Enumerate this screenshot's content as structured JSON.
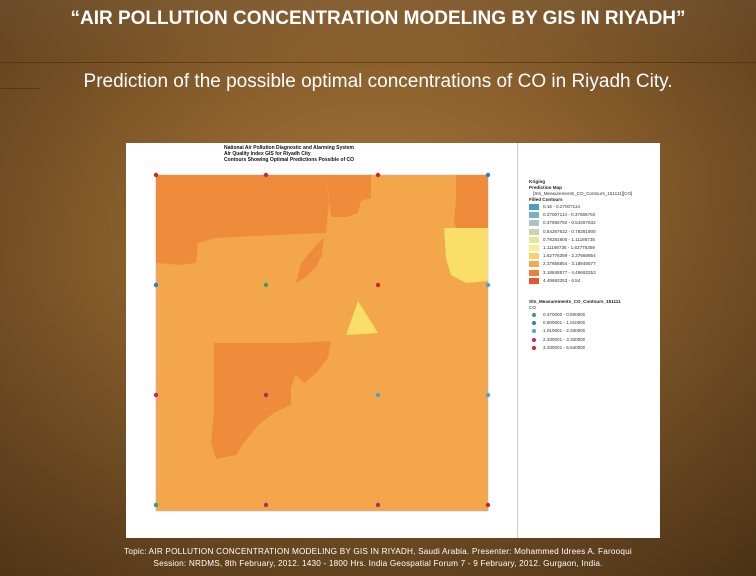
{
  "slide": {
    "title": "“AIR POLLUTION CONCENTRATION MODELING BY GIS IN RIYADH”",
    "subtitle": "Prediction of the possible optimal concentrations of CO in Riyadh City.",
    "footer_line1": "Topic: AIR POLLUTION CONCENTRATION MODELING BY GIS IN RIYADH, Saudi Arabia. Presenter: Mohammed Idrees A. Farooqui",
    "footer_line2": "Session: NRDMS, 8th February, 2012. 1430 - 1800 Hrs.  India Geospatial Forum  7 - 9 February, 2012. Gurgaon, India."
  },
  "map": {
    "header_line1": "National Air Pollution Diagnostic and Alarming System",
    "header_line2": "Air Quality Index GIS for Riyadh City",
    "header_line3": "Contours Showing Optimal Predictions Possible of CO",
    "colors": {
      "base": "#f4a64a",
      "high": "#ee8a3a",
      "low": "#f9e06a",
      "frame": "#9a9a9a"
    }
  },
  "legend": {
    "kriging_title": "Kriging",
    "prediction_label": "Prediction Map",
    "layer_name": "[Stn_Measurements_CO_Contours_151111][CO]",
    "filled_title": "Filled Contours",
    "filled_items": [
      {
        "label": "0.16 - 0.27007114",
        "color": "#4a9ec2"
      },
      {
        "label": "0.27007114 - 0.37666792",
        "color": "#7ab0c6"
      },
      {
        "label": "0.37666792 - 0.54267632",
        "color": "#a8c4c4"
      },
      {
        "label": "0.54267632 - 0.78281900",
        "color": "#c6d6a6"
      },
      {
        "label": "0.78281900 - 1.11166735",
        "color": "#e4e69a"
      },
      {
        "label": "1.11166735 - 1.62776359",
        "color": "#f7ef8e"
      },
      {
        "label": "1.62776359 - 2.37668854",
        "color": "#f9d06c"
      },
      {
        "label": "2.37668854 - 3.18848577",
        "color": "#f5a84c"
      },
      {
        "label": "3.18848577 - 4.49693253",
        "color": "#ee7e3a"
      },
      {
        "label": "4.49693253 - 6.54",
        "color": "#e0582c"
      }
    ],
    "points_title": "Stn_Measurements_CO_Contours_151111",
    "points_field": "CO",
    "point_items": [
      {
        "label": "0.370000 - 0.500000",
        "color": "#3a9e6a"
      },
      {
        "label": "0.500001 - 1.010000",
        "color": "#2a7ec2"
      },
      {
        "label": "1.010001 - 2.330000",
        "color": "#4aa6c6"
      },
      {
        "label": "2.330001 - 3.330000",
        "color": "#b8286a"
      },
      {
        "label": "3.330001 - 6.540000",
        "color": "#d42222"
      }
    ]
  }
}
